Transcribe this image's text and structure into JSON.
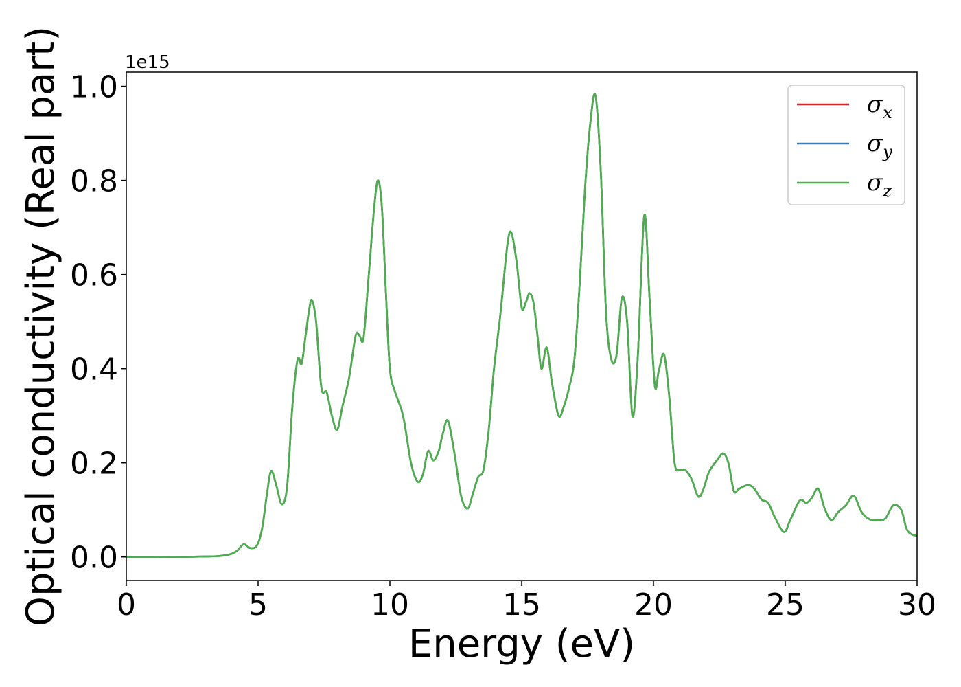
{
  "chart_data": {
    "type": "line",
    "xlabel": "Energy (eV)",
    "ylabel": "Optical conductivity (Real part)",
    "y_offset_text": "1e15",
    "xlim": [
      0,
      30
    ],
    "ylim": [
      -0.05,
      1.03
    ],
    "y_scale_factor": "1e15",
    "x_ticks": [
      0,
      5,
      10,
      15,
      20,
      25,
      30
    ],
    "x_tick_labels": [
      "0",
      "5",
      "10",
      "15",
      "20",
      "25",
      "30"
    ],
    "y_ticks": [
      0.0,
      0.2,
      0.4,
      0.6,
      0.8,
      1.0
    ],
    "y_tick_labels": [
      "0.0",
      "0.2",
      "0.4",
      "0.6",
      "0.8",
      "1.0"
    ],
    "grid": false,
    "legend_position": "top-right",
    "series": [
      {
        "name": "σx",
        "legend_base": "σ",
        "legend_sub": "x",
        "color": "#d62728"
      },
      {
        "name": "σy",
        "legend_base": "σ",
        "legend_sub": "y",
        "color": "#3a7ab8"
      },
      {
        "name": "σz",
        "legend_base": "σ",
        "legend_sub": "z",
        "color": "#4cae4c"
      }
    ],
    "x": [
      0,
      1,
      2,
      3,
      3.5,
      3.9,
      4.2,
      4.45,
      4.7,
      4.95,
      5.15,
      5.35,
      5.5,
      5.7,
      5.9,
      6.1,
      6.3,
      6.5,
      6.65,
      6.8,
      6.95,
      7.05,
      7.2,
      7.4,
      7.6,
      7.8,
      8.0,
      8.2,
      8.45,
      8.7,
      8.85,
      9.0,
      9.2,
      9.4,
      9.55,
      9.7,
      9.85,
      10.0,
      10.2,
      10.5,
      10.8,
      11.05,
      11.25,
      11.45,
      11.65,
      11.85,
      12.0,
      12.2,
      12.45,
      12.7,
      12.95,
      13.15,
      13.35,
      13.55,
      13.75,
      13.95,
      14.2,
      14.45,
      14.6,
      14.8,
      15.0,
      15.15,
      15.3,
      15.45,
      15.6,
      15.75,
      15.95,
      16.15,
      16.4,
      16.6,
      16.8,
      17.0,
      17.2,
      17.4,
      17.6,
      17.8,
      18.0,
      18.2,
      18.4,
      18.6,
      18.8,
      19.0,
      19.2,
      19.4,
      19.65,
      19.85,
      20.05,
      20.2,
      20.4,
      20.6,
      20.8,
      21.0,
      21.2,
      21.45,
      21.7,
      21.9,
      22.1,
      22.4,
      22.65,
      22.85,
      23.05,
      23.25,
      23.6,
      23.85,
      24.1,
      24.35,
      24.6,
      24.95,
      25.2,
      25.55,
      25.8,
      26.0,
      26.25,
      26.5,
      26.75,
      27.0,
      27.3,
      27.6,
      27.9,
      28.2,
      28.5,
      28.8,
      29.1,
      29.4,
      29.6,
      29.8,
      30
    ],
    "y": [
      0.0,
      0.0,
      0.0003,
      0.001,
      0.002,
      0.005,
      0.013,
      0.027,
      0.019,
      0.024,
      0.06,
      0.14,
      0.183,
      0.15,
      0.112,
      0.15,
      0.32,
      0.42,
      0.41,
      0.47,
      0.53,
      0.545,
      0.5,
      0.36,
      0.35,
      0.3,
      0.27,
      0.32,
      0.38,
      0.47,
      0.47,
      0.465,
      0.6,
      0.74,
      0.8,
      0.74,
      0.56,
      0.4,
      0.35,
      0.3,
      0.2,
      0.16,
      0.175,
      0.225,
      0.205,
      0.225,
      0.26,
      0.29,
      0.22,
      0.13,
      0.103,
      0.135,
      0.17,
      0.185,
      0.27,
      0.4,
      0.52,
      0.66,
      0.69,
      0.63,
      0.53,
      0.54,
      0.56,
      0.54,
      0.47,
      0.4,
      0.445,
      0.37,
      0.3,
      0.32,
      0.36,
      0.42,
      0.58,
      0.78,
      0.92,
      0.98,
      0.82,
      0.52,
      0.42,
      0.43,
      0.55,
      0.5,
      0.3,
      0.42,
      0.725,
      0.55,
      0.365,
      0.395,
      0.43,
      0.34,
      0.2,
      0.185,
      0.185,
      0.165,
      0.128,
      0.145,
      0.18,
      0.205,
      0.22,
      0.198,
      0.14,
      0.145,
      0.153,
      0.143,
      0.122,
      0.115,
      0.085,
      0.053,
      0.08,
      0.12,
      0.115,
      0.125,
      0.145,
      0.102,
      0.078,
      0.095,
      0.11,
      0.13,
      0.095,
      0.08,
      0.078,
      0.082,
      0.11,
      0.1,
      0.06,
      0.048,
      0.045
    ]
  }
}
